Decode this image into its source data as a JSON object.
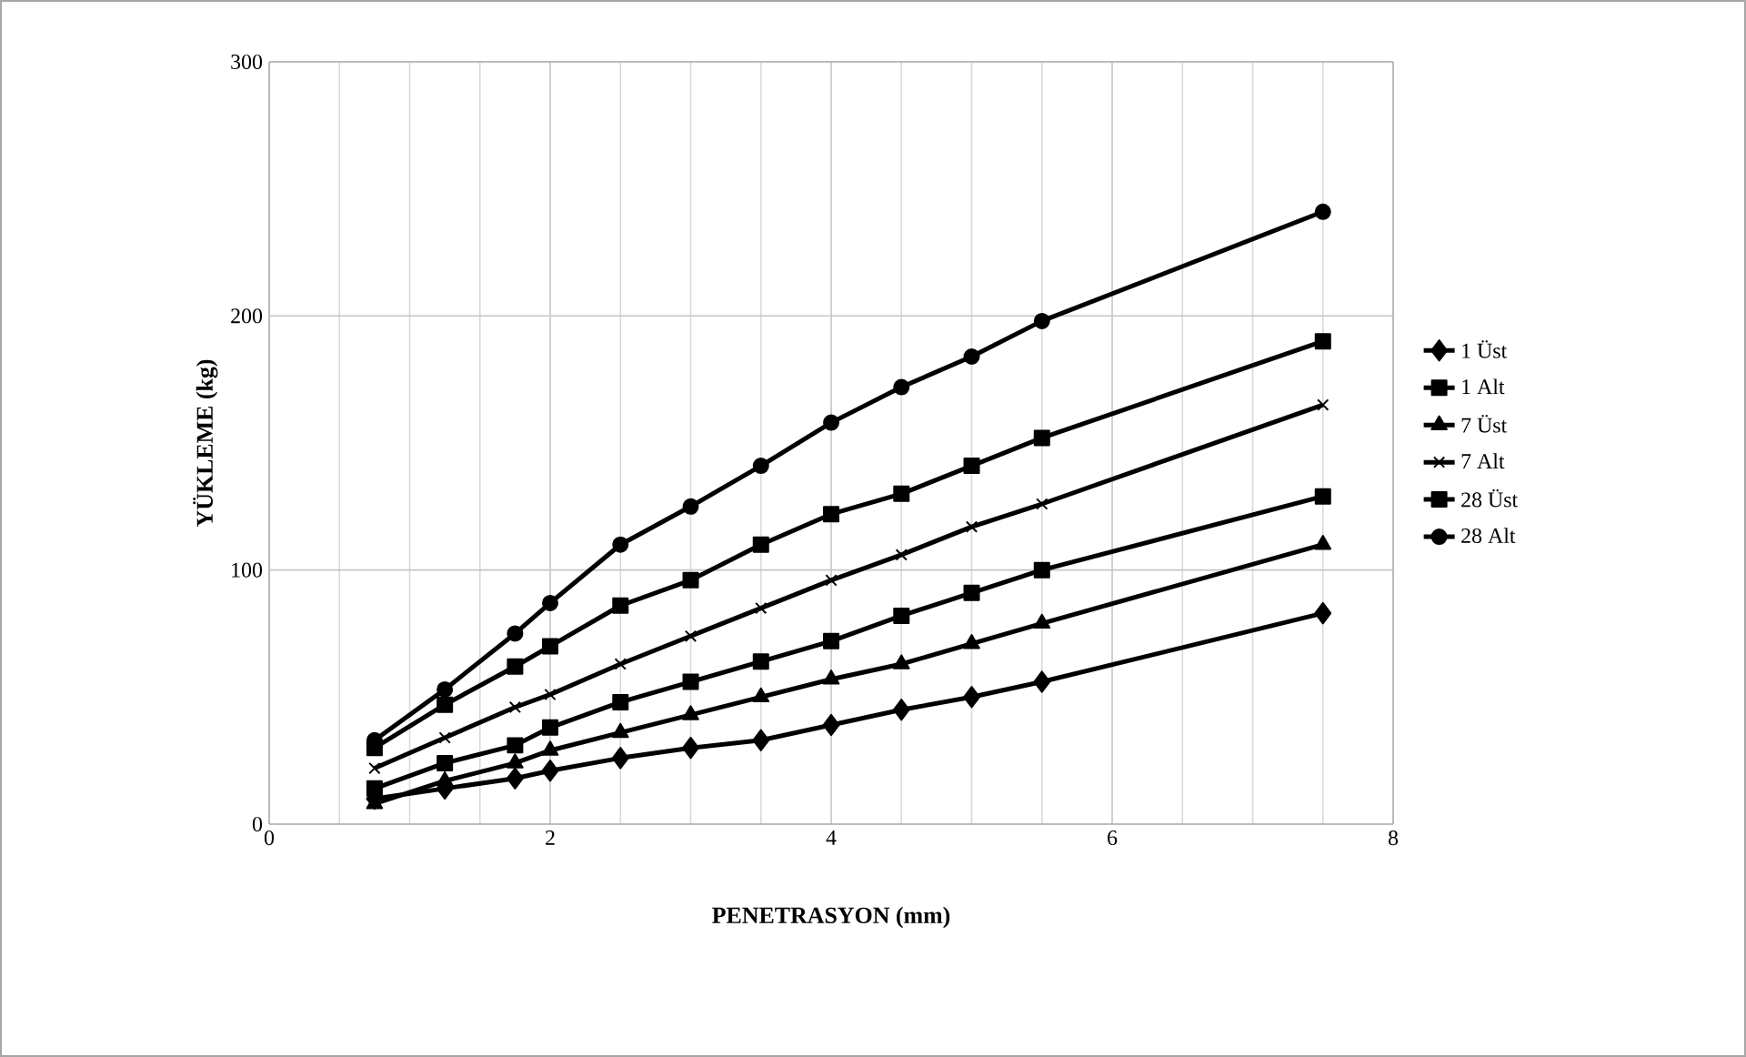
{
  "chart_data": {
    "type": "line",
    "xlabel": "PENETRASYON (mm)",
    "ylabel": "YÜKLEME (kg)",
    "x": [
      0.75,
      1.25,
      1.75,
      2,
      2.5,
      3,
      3.5,
      4,
      4.5,
      5,
      5.5,
      7.5
    ],
    "series": [
      {
        "name": "1 Üst",
        "color": "#000000",
        "marker": "diamond",
        "values": [
          10,
          14,
          18,
          21,
          26,
          30,
          33,
          39,
          45,
          50,
          56,
          83
        ]
      },
      {
        "name": "1 Alt",
        "color": "#000000",
        "marker": "square",
        "values": [
          14,
          24,
          31,
          38,
          48,
          56,
          64,
          72,
          82,
          91,
          100,
          129
        ]
      },
      {
        "name": "7 Üst",
        "color": "#000000",
        "marker": "triangle",
        "values": [
          8,
          17,
          24,
          29,
          36,
          43,
          50,
          57,
          63,
          71,
          79,
          110
        ]
      },
      {
        "name": "7 Alt",
        "color": "#000000",
        "marker": "cross",
        "values": [
          22,
          34,
          46,
          51,
          63,
          74,
          85,
          96,
          106,
          117,
          126,
          165
        ]
      },
      {
        "name": "28 Üst",
        "color": "#000000",
        "marker": "square",
        "values": [
          30,
          47,
          62,
          70,
          86,
          96,
          110,
          122,
          130,
          141,
          152,
          190
        ]
      },
      {
        "name": "28 Alt",
        "color": "#000000",
        "marker": "circle",
        "values": [
          33,
          53,
          75,
          87,
          110,
          125,
          141,
          158,
          172,
          184,
          198,
          241
        ]
      }
    ],
    "xlim": [
      0,
      8
    ],
    "xticks": [
      0,
      2,
      4,
      6,
      8
    ],
    "ylim": [
      0,
      300
    ],
    "yticks": [
      0,
      100,
      200,
      300
    ],
    "grid": true,
    "legend": "right",
    "line_style": "solid"
  }
}
